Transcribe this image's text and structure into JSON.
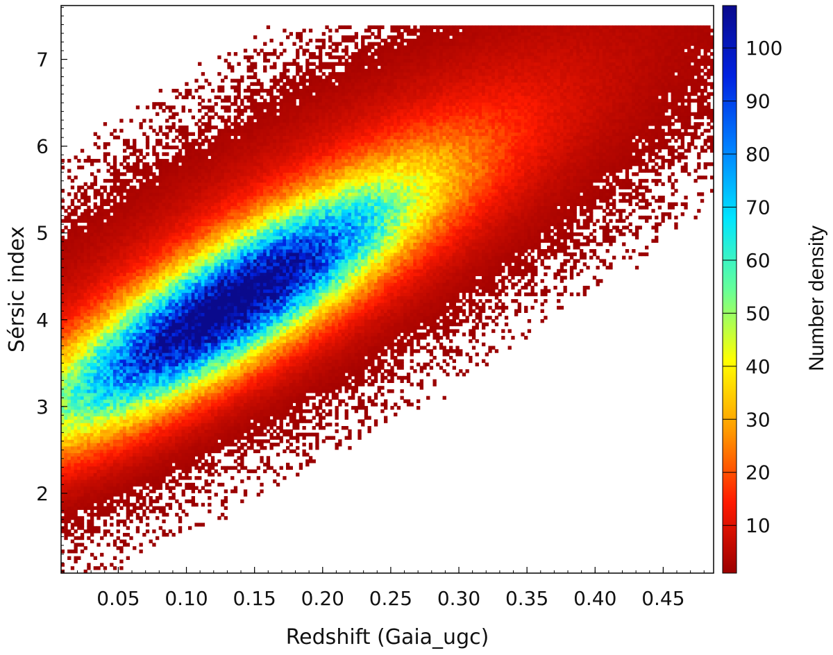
{
  "chart_data": {
    "type": "heatmap",
    "title": "",
    "xlabel": "Redshift (Gaia_ugc)",
    "ylabel": "Sérsic index",
    "xlim": [
      0.008,
      0.487
    ],
    "ylim": [
      1.08,
      7.62
    ],
    "x_ticks": [
      0.05,
      0.1,
      0.15,
      0.2,
      0.25,
      0.3,
      0.35,
      0.4,
      0.45
    ],
    "x_tick_labels": [
      "0.05",
      "0.10",
      "0.15",
      "0.20",
      "0.25",
      "0.30",
      "0.35",
      "0.40",
      "0.45"
    ],
    "y_ticks": [
      2,
      3,
      4,
      5,
      6,
      7
    ],
    "y_tick_labels": [
      "2",
      "3",
      "4",
      "5",
      "6",
      "7"
    ],
    "colorbar": {
      "label": "Number density",
      "range": [
        1,
        108
      ],
      "ticks": [
        10,
        20,
        30,
        40,
        50,
        60,
        70,
        80,
        90,
        100
      ],
      "tick_labels": [
        "10",
        "20",
        "30",
        "40",
        "50",
        "60",
        "70",
        "80",
        "90",
        "100"
      ],
      "colormap": "jet_truncated",
      "colormap_stops": [
        "#9b0000",
        "#ff1a00",
        "#ff9900",
        "#ffff00",
        "#66ff99",
        "#00e5ff",
        "#0080ff",
        "#0022e0",
        "#0a0a8c"
      ]
    },
    "density_model": {
      "peak_x": 0.13,
      "peak_y": 4.15,
      "peak_density": 105,
      "n_max_cap": 7.38,
      "sigma_x": 0.045,
      "sigma_y": 0.95,
      "correlation_slope": 12.0
    },
    "grid": false,
    "legend": "none"
  }
}
